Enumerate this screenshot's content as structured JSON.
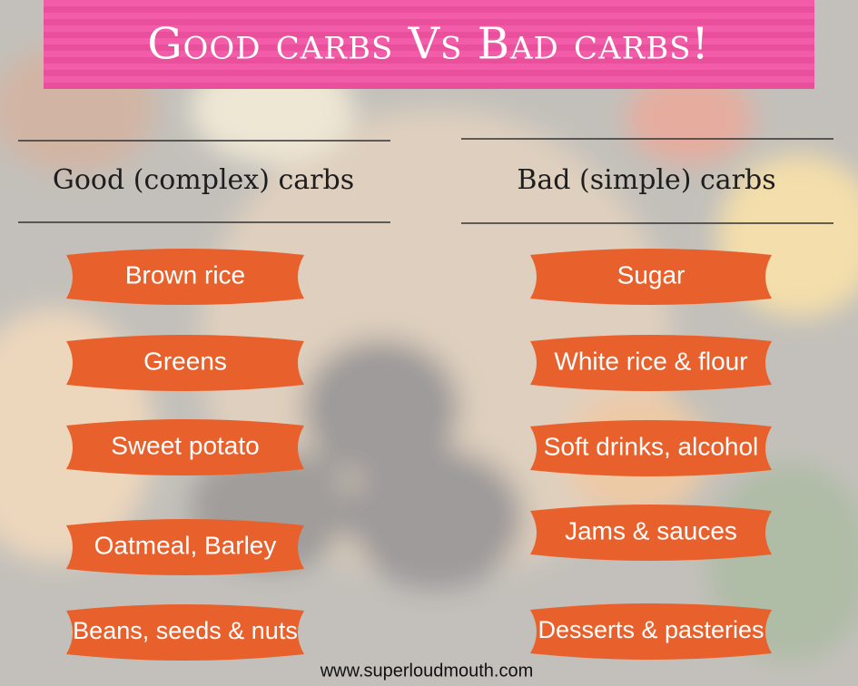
{
  "header": {
    "title": "Good carbs Vs Bad carbs!"
  },
  "columns": [
    {
      "heading": "Good (complex) carbs",
      "items": [
        "Brown rice",
        "Greens",
        "Sweet potato",
        "Oatmeal, Barley",
        "Beans, seeds & nuts"
      ]
    },
    {
      "heading": "Bad (simple) carbs",
      "items": [
        "Sugar",
        "White rice & flour",
        "Soft drinks, alcohol",
        "Jams & sauces",
        "Desserts & pasteries"
      ]
    }
  ],
  "footer": {
    "url": "www.superloudmouth.com"
  }
}
